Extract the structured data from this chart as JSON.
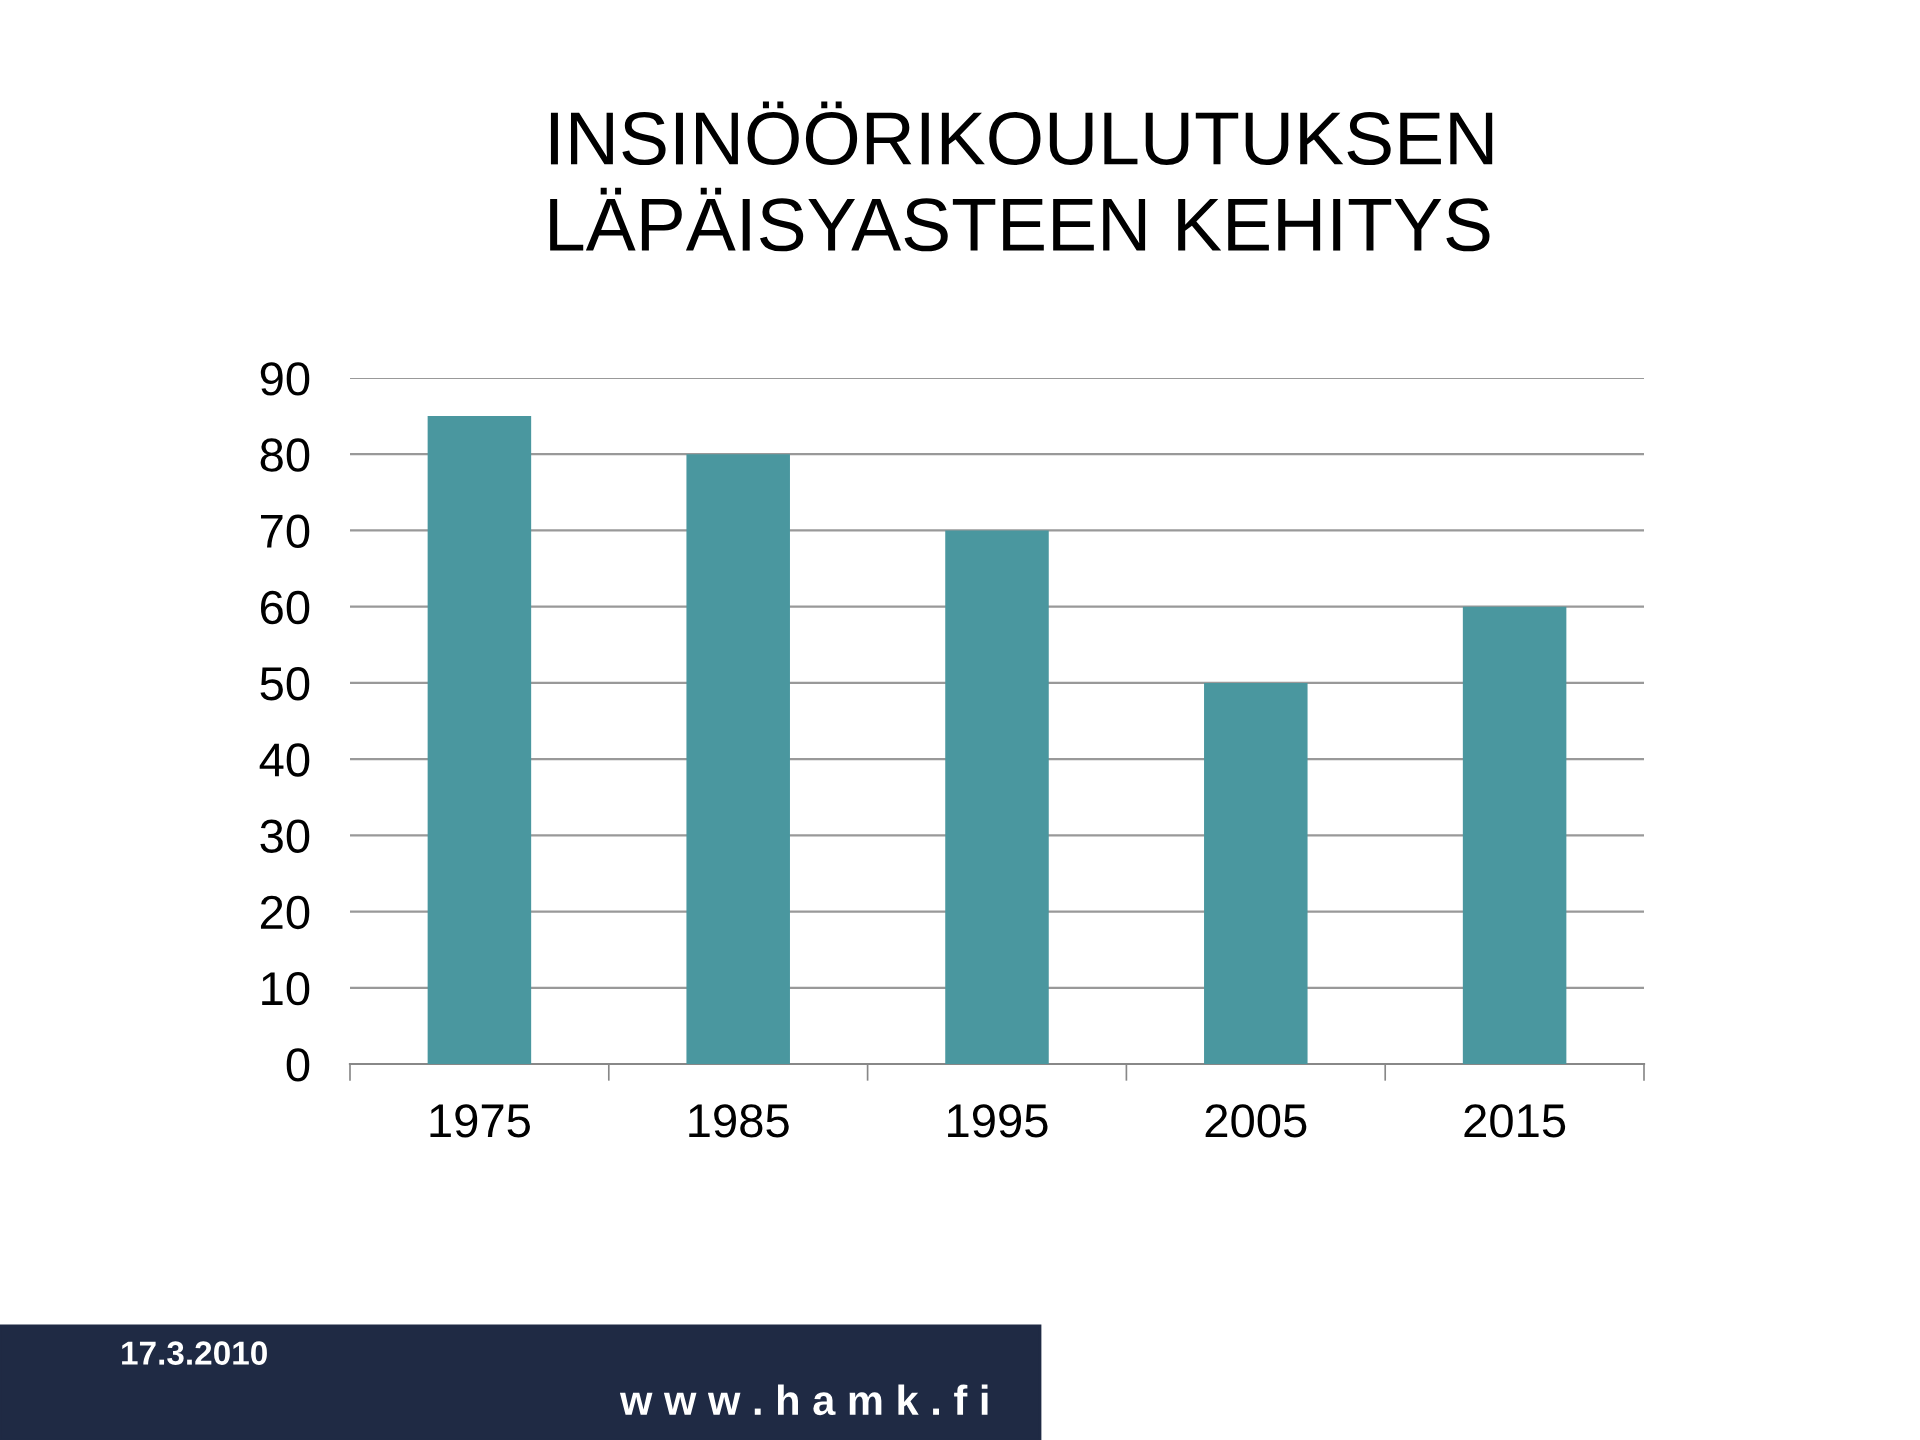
{
  "chart_data": {
    "type": "bar",
    "title": "INSINÖÖRIKOULUTUKSEN\nLÄPÄISYASTEEN KEHITYS",
    "categories": [
      "1975",
      "1985",
      "1995",
      "2005",
      "2015"
    ],
    "values": [
      85,
      80,
      70,
      50,
      60
    ],
    "color": "#4a979f",
    "ylim": [
      0,
      90
    ],
    "yticks": [
      0,
      10,
      20,
      30,
      40,
      50,
      60,
      70,
      80,
      90
    ],
    "grid": "y",
    "annotations": [
      "17.3.2010",
      "w w w . h a m k . f i"
    ]
  }
}
